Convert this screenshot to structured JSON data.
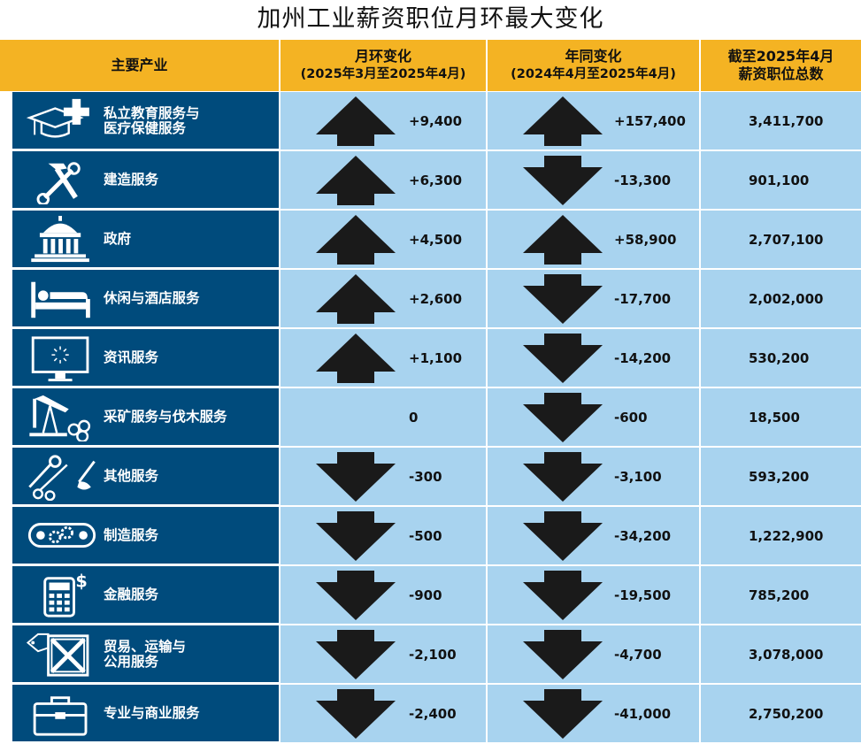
{
  "title": "加州工业薪资职位月环最大变化",
  "header": {
    "industry": "主要产业",
    "mom_line1": "月环变化",
    "mom_line2": "(2025年3月至2025年4月)",
    "yoy_line1": "年同变化",
    "yoy_line2": "(2024年4月至2025年4月)",
    "total_line1": "截至2025年4月",
    "total_line2": "薪资职位总数"
  },
  "colors": {
    "header_bg": "#f4b323",
    "industry_bg": "#004b7c",
    "value_bg": "#a8d3ef",
    "arrow": "#1a1a1a"
  },
  "rows": [
    {
      "name": "私立教育服务与\n医疗保健服务",
      "icon": "graduation-medical-icon",
      "mom": "+9,400",
      "mom_dir": "up",
      "yoy": "+157,400",
      "yoy_dir": "up",
      "total": "3,411,700"
    },
    {
      "name": "建造服务",
      "icon": "hammer-wrench-icon",
      "mom": "+6,300",
      "mom_dir": "up",
      "yoy": "-13,300",
      "yoy_dir": "down",
      "total": "901,100"
    },
    {
      "name": "政府",
      "icon": "capitol-building-icon",
      "mom": "+4,500",
      "mom_dir": "up",
      "yoy": "+58,900",
      "yoy_dir": "up",
      "total": "2,707,100"
    },
    {
      "name": "休闲与酒店服务",
      "icon": "bed-icon",
      "mom": "+2,600",
      "mom_dir": "up",
      "yoy": "-17,700",
      "yoy_dir": "down",
      "total": "2,002,000"
    },
    {
      "name": "资讯服务",
      "icon": "monitor-icon",
      "mom": "+1,100",
      "mom_dir": "up",
      "yoy": "-14,200",
      "yoy_dir": "down",
      "total": "530,200"
    },
    {
      "name": "采矿服务与伐木服务",
      "icon": "oil-pump-logs-icon",
      "mom": "0",
      "mom_dir": "none",
      "yoy": "-600",
      "yoy_dir": "down",
      "total": "18,500"
    },
    {
      "name": "其他服务",
      "icon": "tools-scissors-icon",
      "mom": "-300",
      "mom_dir": "down",
      "yoy": "-3,100",
      "yoy_dir": "down",
      "total": "593,200"
    },
    {
      "name": "制造服务",
      "icon": "conveyor-gears-icon",
      "mom": "-500",
      "mom_dir": "down",
      "yoy": "-34,200",
      "yoy_dir": "down",
      "total": "1,222,900"
    },
    {
      "name": "金融服务",
      "icon": "calculator-dollar-icon",
      "mom": "-900",
      "mom_dir": "down",
      "yoy": "-19,500",
      "yoy_dir": "down",
      "total": "785,200"
    },
    {
      "name": "贸易、运输与\n公用服务",
      "icon": "crate-tag-icon",
      "mom": "-2,100",
      "mom_dir": "down",
      "yoy": "-4,700",
      "yoy_dir": "down",
      "total": "3,078,000"
    },
    {
      "name": "专业与商业服务",
      "icon": "briefcase-icon",
      "mom": "-2,400",
      "mom_dir": "down",
      "yoy": "-41,000",
      "yoy_dir": "down",
      "total": "2,750,200"
    }
  ]
}
